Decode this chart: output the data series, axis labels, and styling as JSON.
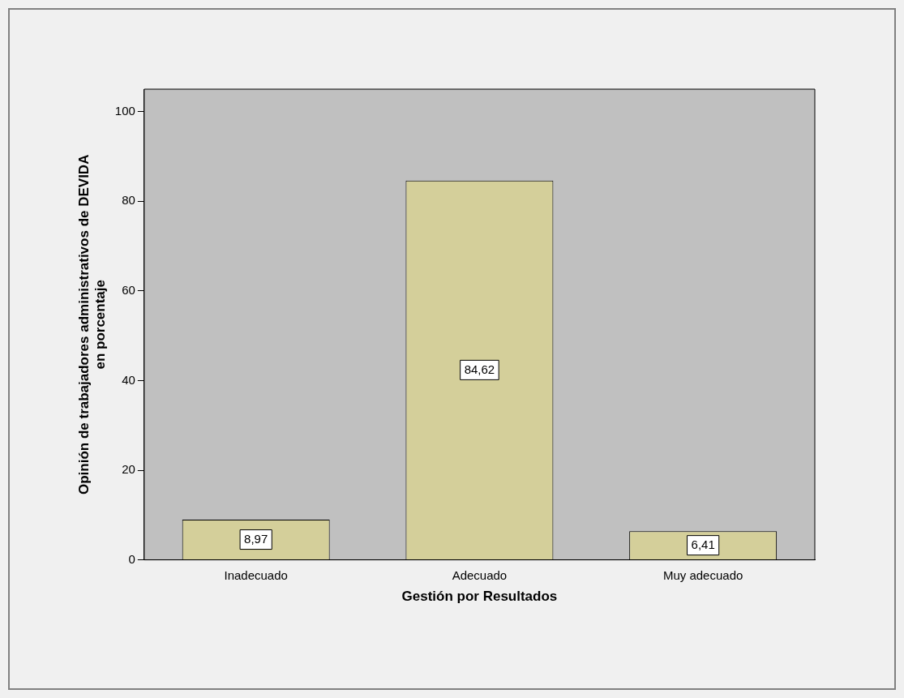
{
  "chart_data": {
    "type": "bar",
    "categories": [
      "Inadecuado",
      "Adecuado",
      "Muy adecuado"
    ],
    "values": [
      8.97,
      84.62,
      6.41
    ],
    "color": "#d4cf9a",
    "value_labels": [
      "8,97",
      "84,62",
      "6,41"
    ],
    "xlabel": "Gestión por Resultados",
    "ylabel": "Opinión de trabajadores administrativos de DEVIDA\nen porcentaje",
    "ylim": [
      0,
      105
    ],
    "yticks": [
      0,
      20,
      40,
      60,
      80,
      100
    ],
    "grid": false,
    "legend": false
  }
}
